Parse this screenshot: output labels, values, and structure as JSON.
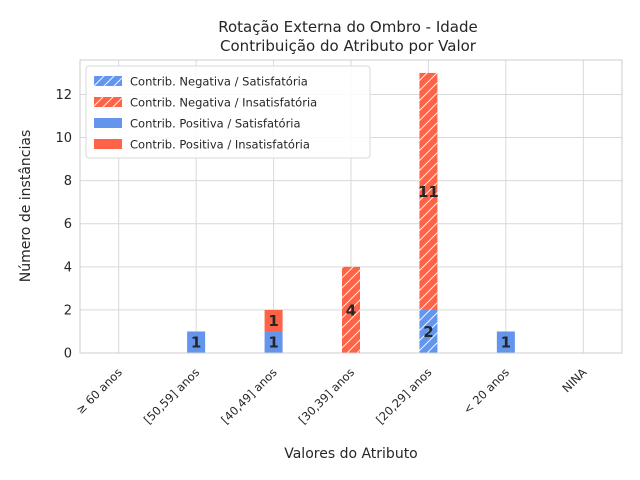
{
  "chart_data": {
    "type": "bar",
    "stacked": true,
    "title_line1": "Rotação Externa do Ombro - Idade",
    "title_line2": "Contribuição do Atributo por Valor",
    "xlabel": "Valores do Atributo",
    "ylabel": "Número de instâncias",
    "categories": [
      "≥ 60 anos",
      "[50,59] anos",
      "[40,49] anos",
      "[30,39] anos",
      "[20,29] anos",
      "< 20 anos",
      "NINA"
    ],
    "ylim": [
      0,
      13.6
    ],
    "yticks": [
      0,
      2,
      4,
      6,
      8,
      10,
      12
    ],
    "grid": true,
    "legend_position": "top-left",
    "series": [
      {
        "name": "Contrib. Negativa / Satisfatória",
        "color": "#6495ED",
        "hatch": true,
        "values": [
          0,
          0,
          0,
          0,
          2,
          0,
          0
        ]
      },
      {
        "name": "Contrib. Negativa / Insatisfatória",
        "color": "#FF6347",
        "hatch": true,
        "values": [
          0,
          0,
          0,
          4,
          11,
          0,
          0
        ]
      },
      {
        "name": "Contrib. Positiva / Satisfatória",
        "color": "#6495ED",
        "hatch": false,
        "values": [
          0,
          1,
          1,
          0,
          0,
          1,
          0
        ]
      },
      {
        "name": "Contrib. Positiva / Insatisfatória",
        "color": "#FF6347",
        "hatch": false,
        "values": [
          0,
          0,
          1,
          0,
          0,
          0,
          0
        ]
      }
    ]
  }
}
